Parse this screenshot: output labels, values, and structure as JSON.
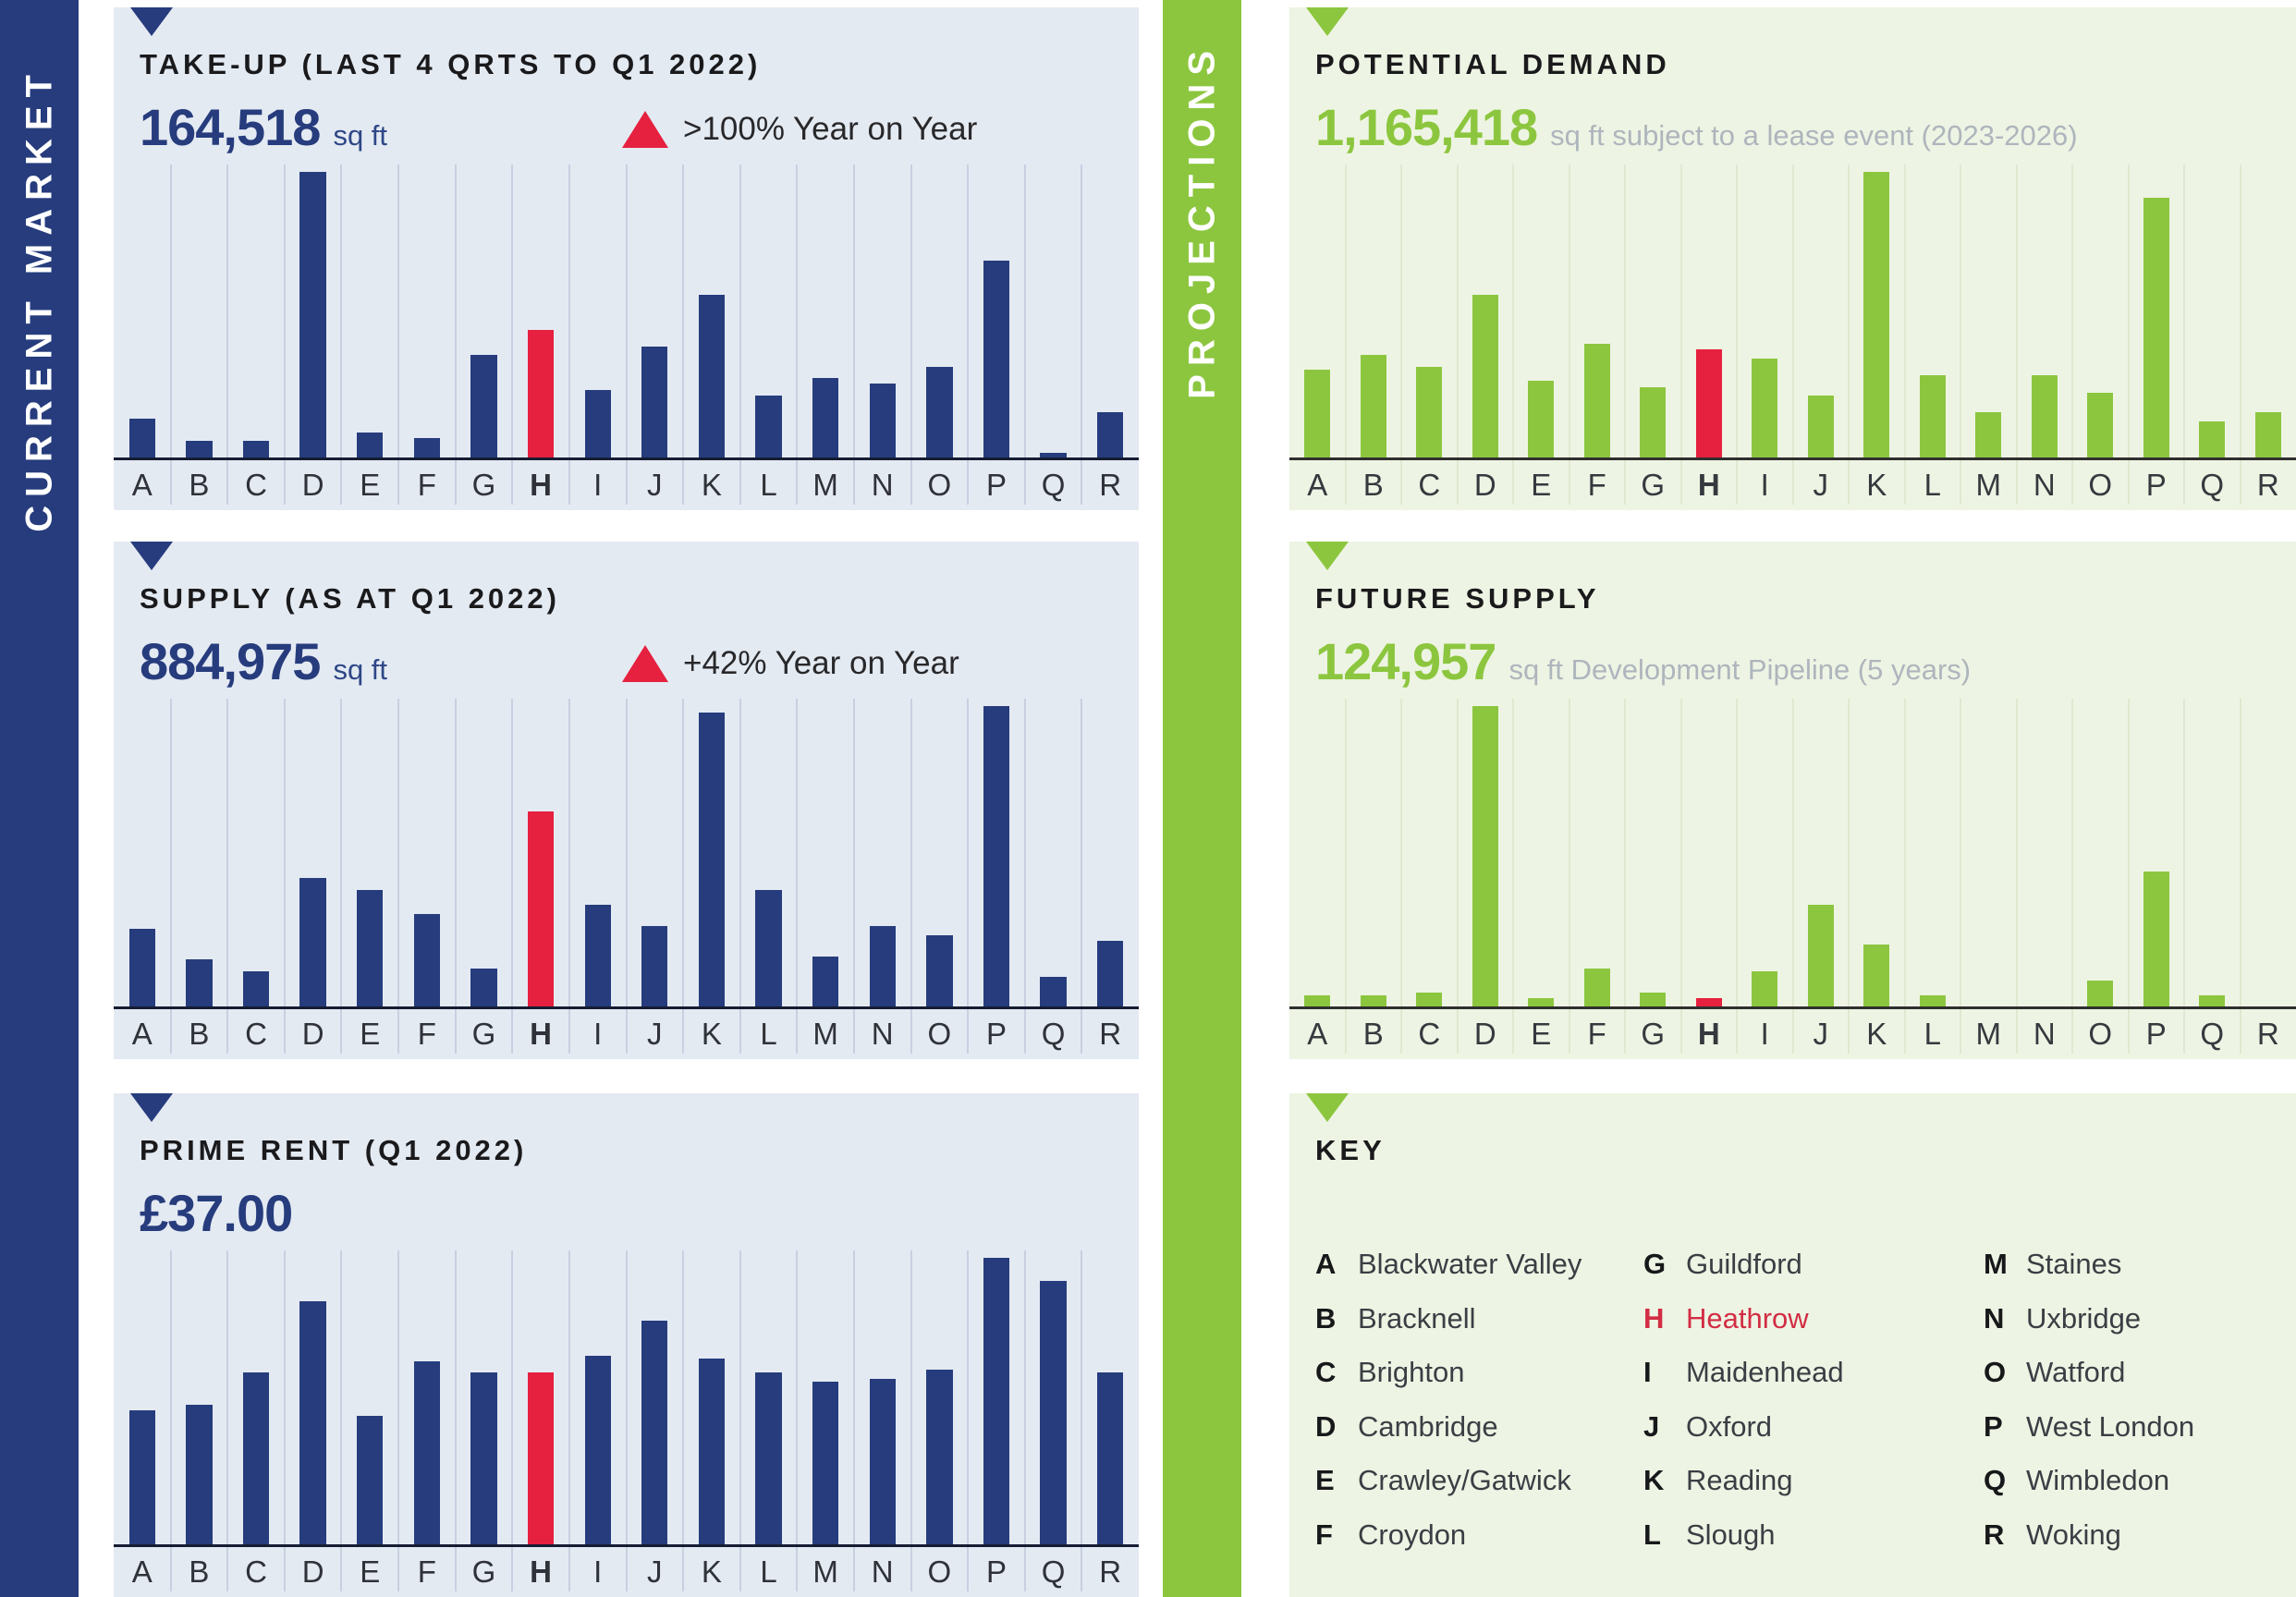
{
  "strips": {
    "left": {
      "label": "CURRENT MARKET",
      "color": "#263C7D"
    },
    "right": {
      "label": "PROJECTIONS",
      "color": "#8CC63F"
    }
  },
  "colors": {
    "navy": "#263C7D",
    "green": "#8CC63F",
    "highlight_red": "#E6203F",
    "panel_blue_bg": "#E4EAF2",
    "panel_green_bg": "#EEF4E3",
    "gray_text": "#AEB5BD"
  },
  "panels": [
    {
      "id": "take-up",
      "title": "TAKE-UP (LAST 4 QRTS TO Q1 2022)",
      "value": "164,518",
      "unit": "sq ft",
      "annotation": ">100% Year on Year"
    },
    {
      "id": "supply",
      "title": "SUPPLY (AS AT Q1 2022)",
      "value": "884,975",
      "unit": "sq ft",
      "annotation": "+42% Year on Year"
    },
    {
      "id": "prime-rent",
      "title": "PRIME RENT (Q1 2022)",
      "value": "£37.00",
      "unit": "",
      "annotation": ""
    },
    {
      "id": "potential-demand",
      "title": "POTENTIAL DEMAND",
      "value": "1,165,418",
      "unit": "sq ft subject to a lease event (2023-2026)",
      "annotation": ""
    },
    {
      "id": "future-supply",
      "title": "FUTURE SUPPLY",
      "value": "124,957",
      "unit": "sq ft Development Pipeline (5 years)",
      "annotation": ""
    }
  ],
  "chart_data": [
    {
      "name": "take_up",
      "type": "bar",
      "title": "TAKE-UP (LAST 4 QRTS TO Q1 2022)",
      "headline_value": "164,518 sq ft",
      "annotation": ">100% Year on Year",
      "categories": [
        "A",
        "B",
        "C",
        "D",
        "E",
        "F",
        "G",
        "H",
        "I",
        "J",
        "K",
        "L",
        "M",
        "N",
        "O",
        "P",
        "Q",
        "R"
      ],
      "values": [
        14,
        6,
        6,
        100,
        9,
        7,
        36,
        45,
        24,
        39,
        57,
        22,
        28,
        26,
        32,
        69,
        2,
        16
      ],
      "values_unit": "percent of tallest bar (no numeric axis shown)",
      "highlight": "H",
      "bar_color": "#263C7D",
      "highlight_color": "#E6203F",
      "grid": true,
      "legend": false
    },
    {
      "name": "supply",
      "type": "bar",
      "title": "SUPPLY (AS AT Q1 2022)",
      "headline_value": "884,975 sq ft",
      "annotation": "+42% Year on Year",
      "categories": [
        "A",
        "B",
        "C",
        "D",
        "E",
        "F",
        "G",
        "H",
        "I",
        "J",
        "K",
        "L",
        "M",
        "N",
        "O",
        "P",
        "Q",
        "R"
      ],
      "values": [
        26,
        16,
        12,
        43,
        39,
        31,
        13,
        65,
        34,
        27,
        98,
        39,
        17,
        27,
        24,
        100,
        10,
        22
      ],
      "values_unit": "percent of tallest bar (no numeric axis shown)",
      "highlight": "H",
      "bar_color": "#263C7D",
      "highlight_color": "#E6203F",
      "grid": true,
      "legend": false
    },
    {
      "name": "prime_rent",
      "type": "bar",
      "title": "PRIME RENT (Q1 2022)",
      "headline_value": "£37.00",
      "annotation": "",
      "categories": [
        "A",
        "B",
        "C",
        "D",
        "E",
        "F",
        "G",
        "H",
        "I",
        "J",
        "K",
        "L",
        "M",
        "N",
        "O",
        "P",
        "Q",
        "R"
      ],
      "values": [
        47,
        49,
        60,
        85,
        45,
        64,
        60,
        60,
        66,
        78,
        65,
        60,
        57,
        58,
        61,
        100,
        92,
        60
      ],
      "values_unit": "percent of tallest bar (no numeric axis shown)",
      "highlight": "H",
      "bar_color": "#263C7D",
      "highlight_color": "#E6203F",
      "grid": true,
      "legend": false
    },
    {
      "name": "potential_demand",
      "type": "bar",
      "title": "POTENTIAL DEMAND",
      "headline_value": "1,165,418 sq ft subject to a lease event (2023-2026)",
      "annotation": "",
      "categories": [
        "A",
        "B",
        "C",
        "D",
        "E",
        "F",
        "G",
        "H",
        "I",
        "J",
        "K",
        "L",
        "M",
        "N",
        "O",
        "P",
        "Q",
        "R"
      ],
      "values": [
        31,
        36,
        32,
        57,
        27,
        40,
        25,
        38,
        35,
        22,
        100,
        29,
        16,
        29,
        23,
        91,
        13,
        16
      ],
      "values_unit": "percent of tallest bar (no numeric axis shown)",
      "highlight": "H",
      "bar_color": "#8CC63F",
      "highlight_color": "#E6203F",
      "grid": true,
      "legend": false
    },
    {
      "name": "future_supply",
      "type": "bar",
      "title": "FUTURE SUPPLY",
      "headline_value": "124,957 sq ft Development Pipeline (5 years)",
      "annotation": "",
      "categories": [
        "A",
        "B",
        "C",
        "D",
        "E",
        "F",
        "G",
        "H",
        "I",
        "J",
        "K",
        "L",
        "M",
        "N",
        "O",
        "P",
        "Q",
        "R"
      ],
      "values": [
        4,
        4,
        5,
        100,
        3,
        13,
        5,
        3,
        12,
        34,
        21,
        4,
        0,
        0,
        9,
        45,
        4,
        0
      ],
      "values_unit": "percent of tallest bar (no numeric axis shown)",
      "highlight": "H",
      "bar_color": "#8CC63F",
      "highlight_color": "#E6203F",
      "grid": true,
      "legend": false
    }
  ],
  "key": {
    "title": "KEY",
    "entries": [
      {
        "letter": "A",
        "name": "Blackwater Valley",
        "highlight": false
      },
      {
        "letter": "B",
        "name": "Bracknell",
        "highlight": false
      },
      {
        "letter": "C",
        "name": "Brighton",
        "highlight": false
      },
      {
        "letter": "D",
        "name": "Cambridge",
        "highlight": false
      },
      {
        "letter": "E",
        "name": "Crawley/Gatwick",
        "highlight": false
      },
      {
        "letter": "F",
        "name": "Croydon",
        "highlight": false
      },
      {
        "letter": "G",
        "name": "Guildford",
        "highlight": false
      },
      {
        "letter": "H",
        "name": "Heathrow",
        "highlight": true
      },
      {
        "letter": "I",
        "name": "Maidenhead",
        "highlight": false
      },
      {
        "letter": "J",
        "name": "Oxford",
        "highlight": false
      },
      {
        "letter": "K",
        "name": "Reading",
        "highlight": false
      },
      {
        "letter": "L",
        "name": "Slough",
        "highlight": false
      },
      {
        "letter": "M",
        "name": "Staines",
        "highlight": false
      },
      {
        "letter": "N",
        "name": "Uxbridge",
        "highlight": false
      },
      {
        "letter": "O",
        "name": "Watford",
        "highlight": false
      },
      {
        "letter": "P",
        "name": "West London",
        "highlight": false
      },
      {
        "letter": "Q",
        "name": "Wimbledon",
        "highlight": false
      },
      {
        "letter": "R",
        "name": "Woking",
        "highlight": false
      }
    ]
  }
}
